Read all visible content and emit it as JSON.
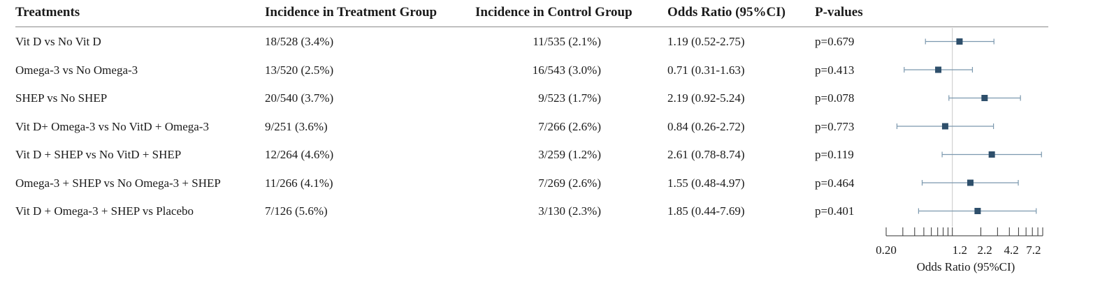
{
  "table": {
    "headers": {
      "treatments": "Treatments",
      "treatment_group": "Incidence in Treatment Group",
      "control_group": "Incidence in Control Group",
      "odds_ratio": "Odds Ratio (95%CI)",
      "p_values": "P-values"
    },
    "rows": [
      {
        "treatment": "Vit D vs No Vit D",
        "treatment_incidence": "18/528 (3.4%)",
        "control_incidence": "11/535 (2.1%)",
        "odds_ratio": "1.19 (0.52-2.75)",
        "p_value": "p=0.679"
      },
      {
        "treatment": "Omega-3 vs No Omega-3",
        "treatment_incidence": "13/520 (2.5%)",
        "control_incidence": "16/543 (3.0%)",
        "odds_ratio": "0.71 (0.31-1.63)",
        "p_value": "p=0.413"
      },
      {
        "treatment": "SHEP vs No SHEP",
        "treatment_incidence": "20/540 (3.7%)",
        "control_incidence": "9/523 (1.7%)",
        "odds_ratio": "2.19 (0.92-5.24)",
        "p_value": "p=0.078"
      },
      {
        "treatment": "Vit D+ Omega-3 vs No VitD + Omega-3",
        "treatment_incidence": "9/251 (3.6%)",
        "control_incidence": "7/266 (2.6%)",
        "odds_ratio": "0.84 (0.26-2.72)",
        "p_value": "p=0.773"
      },
      {
        "treatment": "Vit D + SHEP vs No VitD + SHEP",
        "treatment_incidence": "12/264 (4.6%)",
        "control_incidence": "3/259 (1.2%)",
        "odds_ratio": "2.61 (0.78-8.74)",
        "p_value": "p=0.119"
      },
      {
        "treatment": "Omega-3 + SHEP vs No Omega-3 + SHEP",
        "treatment_incidence": "11/266 (4.1%)",
        "control_incidence": "7/269 (2.6%)",
        "odds_ratio": "1.55 (0.48-4.97)",
        "p_value": "p=0.464"
      },
      {
        "treatment": "Vit D + Omega-3 + SHEP vs Placebo",
        "treatment_incidence": "7/126 (5.6%)",
        "control_incidence": "3/130 (2.3%)",
        "odds_ratio": "1.85 (0.44-7.69)",
        "p_value": "p=0.401"
      }
    ]
  },
  "chart_data": {
    "type": "forest",
    "xlabel": "Odds Ratio (95%CI)",
    "x_scale": "log",
    "xlim": [
      0.2,
      9.0
    ],
    "reference_line": 1,
    "ticks": [
      0.2,
      0.3,
      0.4,
      0.5,
      0.6,
      0.7,
      0.8,
      0.9,
      1,
      2,
      3,
      4,
      5,
      6,
      7,
      8,
      9
    ],
    "tick_labels": [
      {
        "value": 0.2,
        "label": "0.20"
      },
      {
        "value": 1.2,
        "label": "1.2"
      },
      {
        "value": 2.2,
        "label": "2.2"
      },
      {
        "value": 4.2,
        "label": "4.2"
      },
      {
        "value": 7.2,
        "label": "7.2"
      }
    ],
    "points": [
      {
        "or": 1.19,
        "lower": 0.52,
        "upper": 2.75
      },
      {
        "or": 0.71,
        "lower": 0.31,
        "upper": 1.63
      },
      {
        "or": 2.19,
        "lower": 0.92,
        "upper": 5.24
      },
      {
        "or": 0.84,
        "lower": 0.26,
        "upper": 2.72
      },
      {
        "or": 2.61,
        "lower": 0.78,
        "upper": 8.74
      },
      {
        "or": 1.55,
        "lower": 0.48,
        "upper": 4.97
      },
      {
        "or": 1.85,
        "lower": 0.44,
        "upper": 7.69
      }
    ],
    "colors": {
      "marker": "#2e4f6b",
      "ci_line": "#7b98ae",
      "reference": "#c8c8c8",
      "axis": "#333333"
    }
  }
}
